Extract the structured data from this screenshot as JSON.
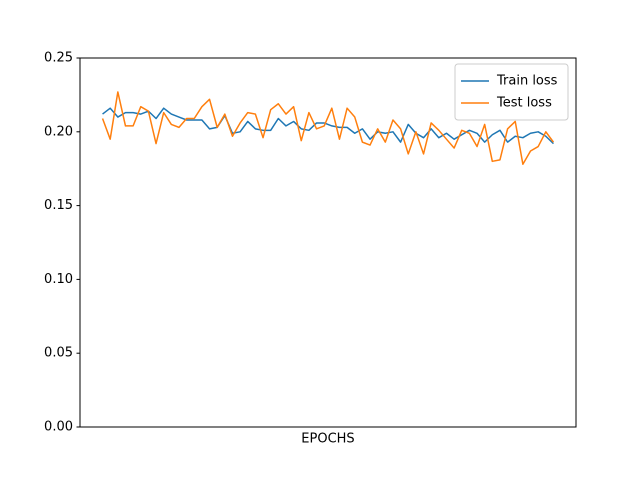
{
  "chart_data": {
    "type": "line",
    "xlabel": "EPOCHS",
    "ylim": [
      0,
      0.25
    ],
    "yticks": [
      {
        "value": 0,
        "label": "0.00"
      },
      {
        "value": 0.05,
        "label": "0.05"
      },
      {
        "value": 0.1,
        "label": "0.10"
      },
      {
        "value": 0.15,
        "label": "0.15"
      },
      {
        "value": 0.2,
        "label": "0.20"
      },
      {
        "value": 0.25,
        "label": "0.25"
      }
    ],
    "grid": false,
    "legend": "upper right",
    "series": [
      {
        "name": "Train loss",
        "color": "#1f77b4",
        "values": [
          0.212,
          0.216,
          0.21,
          0.213,
          0.213,
          0.212,
          0.214,
          0.209,
          0.216,
          0.212,
          0.21,
          0.208,
          0.208,
          0.208,
          0.202,
          0.203,
          0.211,
          0.199,
          0.2,
          0.207,
          0.202,
          0.201,
          0.201,
          0.209,
          0.204,
          0.207,
          0.202,
          0.201,
          0.206,
          0.206,
          0.204,
          0.203,
          0.203,
          0.199,
          0.202,
          0.195,
          0.2,
          0.199,
          0.2,
          0.193,
          0.205,
          0.199,
          0.196,
          0.202,
          0.196,
          0.199,
          0.195,
          0.198,
          0.201,
          0.199,
          0.193,
          0.198,
          0.201,
          0.193,
          0.197,
          0.196,
          0.199,
          0.2,
          0.197,
          0.192
        ]
      },
      {
        "name": "Test loss",
        "color": "#ff7f0e",
        "values": [
          0.209,
          0.195,
          0.227,
          0.204,
          0.204,
          0.217,
          0.214,
          0.192,
          0.213,
          0.205,
          0.203,
          0.209,
          0.209,
          0.217,
          0.222,
          0.203,
          0.212,
          0.197,
          0.206,
          0.213,
          0.212,
          0.196,
          0.215,
          0.219,
          0.212,
          0.217,
          0.194,
          0.213,
          0.202,
          0.204,
          0.216,
          0.195,
          0.216,
          0.21,
          0.193,
          0.191,
          0.202,
          0.193,
          0.208,
          0.202,
          0.185,
          0.2,
          0.185,
          0.206,
          0.201,
          0.195,
          0.189,
          0.201,
          0.199,
          0.19,
          0.205,
          0.18,
          0.181,
          0.202,
          0.207,
          0.178,
          0.187,
          0.19,
          0.2,
          0.193
        ]
      }
    ]
  }
}
